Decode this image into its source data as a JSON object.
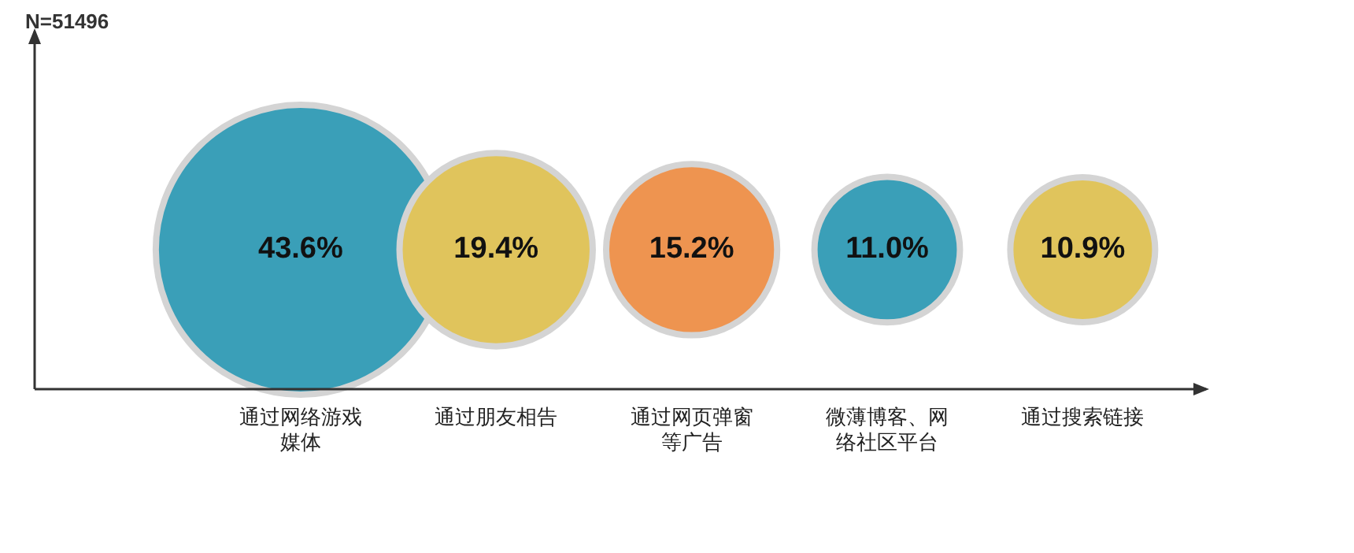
{
  "chart_data": {
    "type": "other",
    "annotations": [
      "N=51496"
    ],
    "categories": [
      "通过网络游戏媒体",
      "通过朋友相告",
      "通过网页弹窗等广告",
      "微薄博客、网络社区平台",
      "通过搜索链接"
    ],
    "values": [
      43.6,
      19.4,
      15.2,
      11.0,
      10.9
    ],
    "colors": [
      "#3a9fb8",
      "#e0c45c",
      "#ee9450",
      "#3a9fb8",
      "#e0c45c"
    ],
    "value_labels": [
      "43.6%",
      "19.4%",
      "15.2%",
      "11.0%",
      "10.9%"
    ]
  }
}
